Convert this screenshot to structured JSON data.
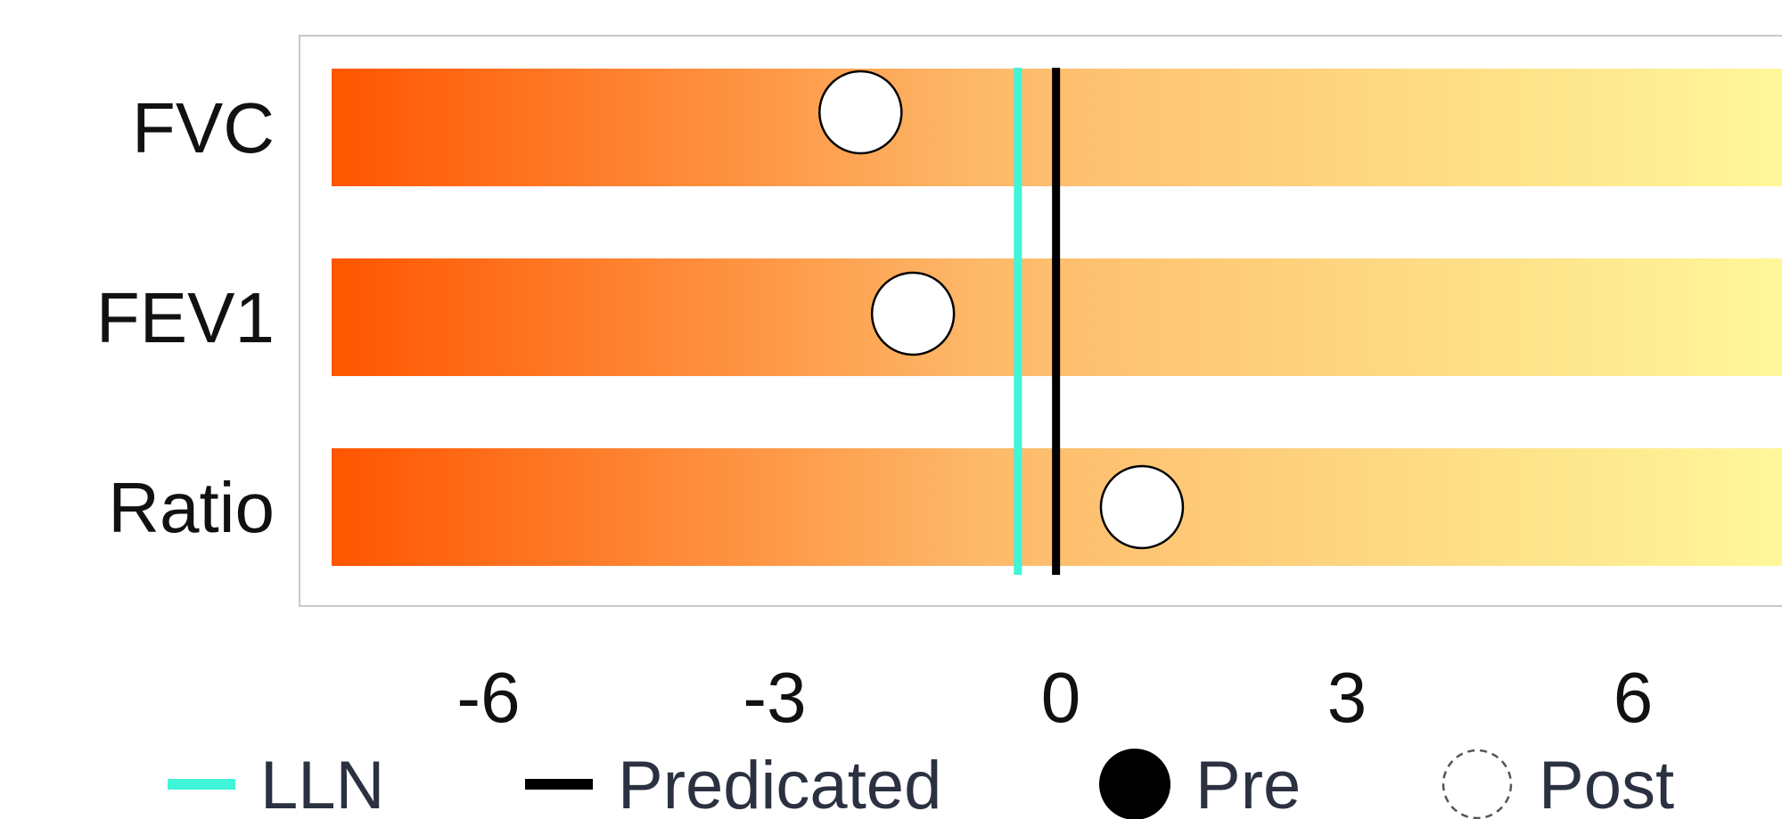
{
  "chart_data": {
    "type": "scatter",
    "categories": [
      "FVC",
      "FEV1",
      "Ratio"
    ],
    "xlim": [
      -8.0,
      9.0
    ],
    "xticks": [
      -6,
      -3,
      0,
      3,
      6
    ],
    "xtick_labels": [
      "-6",
      "-3",
      "0",
      "3",
      "6"
    ],
    "reference_lines": {
      "lln": -0.45,
      "predicated": -0.05
    },
    "series": [
      {
        "name": "Post",
        "values": [
          -2.1,
          -1.55,
          0.85
        ]
      }
    ],
    "legend": {
      "placement": "bottom",
      "items": [
        {
          "label": "LLN",
          "marker": "line",
          "color": "#40f5d8"
        },
        {
          "label": "Predicated",
          "marker": "line",
          "color": "#000000"
        },
        {
          "label": "Pre",
          "marker": "filled-circle",
          "color": "#000000"
        },
        {
          "label": "Post",
          "marker": "dashed-circle",
          "color": "#555555"
        }
      ]
    },
    "colors": {
      "gradient_start": "#ff5500",
      "gradient_mid": "#fdb96a",
      "gradient_end": "#fff79a",
      "lln": "#40f5d8",
      "predicated": "#000000",
      "marker_fill": "#ffffff",
      "marker_stroke": "#000000"
    },
    "grid": false
  }
}
